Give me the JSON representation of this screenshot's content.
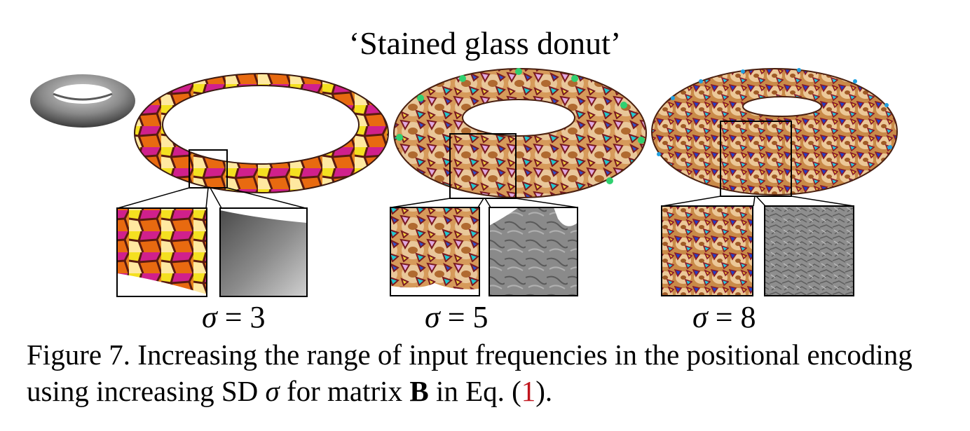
{
  "figure": {
    "title": "‘Stained glass donut’",
    "columns": [
      {
        "sigma_symbol": "σ",
        "sigma_equals": "=",
        "sigma_value": "3"
      },
      {
        "sigma_symbol": "σ",
        "sigma_equals": "=",
        "sigma_value": "5"
      },
      {
        "sigma_symbol": "σ",
        "sigma_equals": "=",
        "sigma_value": "8"
      }
    ]
  },
  "caption": {
    "part1": "Figure 7.  Increasing the range of input frequencies in the positional encoding using increasing SD ",
    "sigma": "σ",
    "part2": " for matrix ",
    "matrix": "B",
    "part3": " in Eq. (",
    "eq_ref": "1",
    "part4": ")."
  },
  "colors": {
    "eq_ref": "#c0141c",
    "glass_orange": "#e8841c",
    "glass_yellow": "#f4e020",
    "glass_magenta": "#d0208c",
    "glass_cyan": "#20d0d0",
    "leading": "#5a1a10",
    "mesh_gray": "#808080"
  }
}
